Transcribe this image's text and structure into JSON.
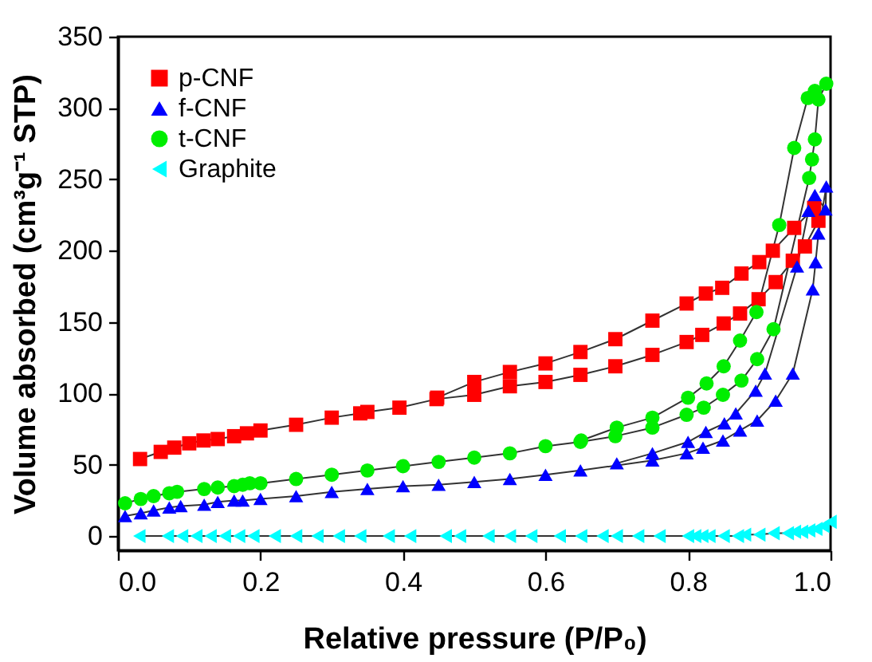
{
  "chart_data": {
    "type": "line",
    "xlabel": "Relative pressure (P/P₀)",
    "ylabel": "Volume absorbed (cm³g⁻¹ STP)",
    "xlim": [
      0,
      1.0
    ],
    "xticks": [
      {
        "value": 0,
        "label": "0.0"
      },
      0.2,
      0.4,
      0.6,
      0.8,
      {
        "value": 1,
        "label": "1.0"
      }
    ],
    "ylim": [
      -10,
      350
    ],
    "yticks": [
      0,
      50,
      100,
      150,
      200,
      250,
      300,
      350
    ],
    "grid": false,
    "legend": "top left",
    "line_style": "solid",
    "series": [
      {
        "name": "p-CNF",
        "color": "#ff0000",
        "marker": "square",
        "x": [
          0.031,
          0.06,
          0.079,
          0.1,
          0.12,
          0.14,
          0.163,
          0.181,
          0.2,
          0.25,
          0.3,
          0.34,
          0.35,
          0.395,
          0.447,
          0.5,
          0.55,
          0.6,
          0.649,
          0.698,
          0.75,
          0.798,
          0.82,
          0.85,
          0.873,
          0.899,
          0.923,
          0.947,
          0.964,
          0.983,
          0.977,
          0.949,
          0.919,
          0.9,
          0.875,
          0.848,
          0.825,
          0.798,
          0.75,
          0.698,
          0.649,
          0.6,
          0.55,
          0.5,
          0.448
        ],
        "values": [
          54,
          59,
          62,
          65,
          67,
          68,
          70,
          72,
          74,
          78,
          83,
          86,
          87,
          90,
          96,
          99,
          105,
          108,
          113,
          119,
          127,
          136,
          141,
          149,
          156,
          166,
          178,
          193,
          203,
          221,
          230,
          216,
          200,
          192,
          184,
          174,
          170,
          163,
          151,
          138,
          129,
          121,
          115,
          108,
          97
        ]
      },
      {
        "name": "f-CNF",
        "color": "#0000ff",
        "marker": "triangle",
        "x": [
          0.01,
          0.032,
          0.05,
          0.072,
          0.088,
          0.121,
          0.14,
          0.163,
          0.175,
          0.2,
          0.25,
          0.3,
          0.35,
          0.4,
          0.45,
          0.5,
          0.55,
          0.6,
          0.649,
          0.75,
          0.798,
          0.821,
          0.849,
          0.873,
          0.897,
          0.923,
          0.947,
          0.975,
          0.979,
          0.983,
          0.994,
          0.993,
          0.978,
          0.969,
          0.953,
          0.908,
          0.895,
          0.867,
          0.851,
          0.825,
          0.8,
          0.75,
          0.7
        ],
        "values": [
          14,
          16,
          18,
          20,
          21,
          22,
          24,
          25,
          25,
          26,
          28,
          31,
          33,
          35,
          36,
          38,
          40,
          43,
          46,
          53,
          58,
          62,
          67,
          74,
          81,
          95,
          114,
          173,
          192,
          212,
          245,
          229,
          239,
          228,
          189,
          114,
          102,
          86,
          79,
          73,
          66,
          58,
          51
        ]
      },
      {
        "name": "t-CNF",
        "color": "#00ee00",
        "marker": "circle",
        "x": [
          0.01,
          0.032,
          0.05,
          0.072,
          0.083,
          0.121,
          0.14,
          0.163,
          0.175,
          0.185,
          0.2,
          0.25,
          0.3,
          0.35,
          0.4,
          0.45,
          0.5,
          0.55,
          0.6,
          0.649,
          0.698,
          0.75,
          0.798,
          0.822,
          0.849,
          0.875,
          0.897,
          0.92,
          0.97,
          0.974,
          0.978,
          0.983,
          0.994,
          0.978,
          0.968,
          0.949,
          0.928,
          0.896,
          0.873,
          0.85,
          0.826,
          0.8,
          0.75,
          0.7,
          0.65
        ],
        "values": [
          23,
          26,
          28,
          30,
          31,
          33,
          34,
          35,
          36,
          37,
          37,
          40,
          43,
          46,
          49,
          52,
          55,
          58,
          63,
          66,
          70,
          76,
          85,
          90,
          99,
          109,
          124,
          145,
          251,
          264,
          278,
          306,
          317,
          312,
          307,
          272,
          218,
          157,
          137,
          119,
          107,
          97,
          83,
          76,
          67
        ]
      },
      {
        "name": "Graphite",
        "color": "#00ffff",
        "marker": "triangle-left",
        "x": [
          0.03,
          0.07,
          0.09,
          0.11,
          0.13,
          0.15,
          0.17,
          0.19,
          0.22,
          0.25,
          0.28,
          0.31,
          0.34,
          0.38,
          0.41,
          0.46,
          0.48,
          0.52,
          0.55,
          0.58,
          0.62,
          0.65,
          0.68,
          0.7,
          0.73,
          0.76,
          0.8,
          0.81,
          0.82,
          0.83,
          0.85,
          0.87,
          0.88,
          0.9,
          0.92,
          0.94,
          0.95,
          0.96,
          0.97,
          0.98,
          0.99,
          1.0
        ],
        "values": [
          0,
          0,
          0,
          0,
          0,
          0,
          0,
          0,
          0,
          0,
          0,
          0,
          0,
          0,
          0,
          0,
          0,
          0,
          0,
          0,
          0,
          0,
          0,
          0,
          0,
          0,
          0,
          0,
          0,
          0,
          0,
          0,
          1,
          1,
          2,
          2,
          3,
          3,
          4,
          5,
          7,
          10
        ]
      }
    ]
  }
}
